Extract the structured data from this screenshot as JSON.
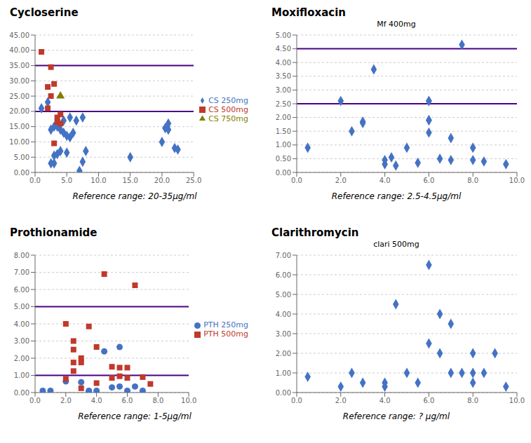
{
  "chart_data": [
    {
      "type": "scatter",
      "title": "Cycloserine",
      "annotation": "Reference range: 20-35μg/ml",
      "ref_lines": [
        {
          "value": 20.0,
          "color": "#4b0082"
        },
        {
          "value": 35.0,
          "color": "#4b0082"
        }
      ],
      "xlim": [
        0,
        25
      ],
      "ylim": [
        0,
        45
      ],
      "xticks": [
        {
          "value": 0,
          "label": "0.0"
        },
        {
          "value": 5.0,
          "label": "5.0"
        },
        {
          "value": 10.0,
          "label": "10.0"
        },
        {
          "value": 15.0,
          "label": "15.0"
        },
        {
          "value": 20.0,
          "label": "20.0"
        },
        {
          "value": 25.0,
          "label": "25.0"
        }
      ],
      "yticks": [
        {
          "value": 0,
          "label": "0.00"
        },
        {
          "value": 5.0,
          "label": "5.00"
        },
        {
          "value": 10.0,
          "label": "10.00"
        },
        {
          "value": 15.0,
          "label": "15.00"
        },
        {
          "value": 20.0,
          "label": "20.00"
        },
        {
          "value": 25.0,
          "label": "25.00"
        },
        {
          "value": 30.0,
          "label": "30.00"
        },
        {
          "value": 35.0,
          "label": "35.00"
        },
        {
          "value": 40.0,
          "label": "40.00"
        },
        {
          "value": 45.0,
          "label": "45.00"
        }
      ],
      "grid": "y",
      "legend": "right",
      "series": [
        {
          "name": "CS 250mg",
          "color": "#4472c4",
          "marker": "diamond",
          "x": [
            1.0,
            2.0,
            2.5,
            2.5,
            3.0,
            3.0,
            3.0,
            3.5,
            3.5,
            4.0,
            4.0,
            4.5,
            4.5,
            5.0,
            5.0,
            5.5,
            5.5,
            6.0,
            6.5,
            7.0,
            7.5,
            7.5,
            8.0,
            15.0,
            20.0,
            20.5,
            21.0,
            21.0,
            22.0,
            22.5
          ],
          "y": [
            21.0,
            23.0,
            3.0,
            14.0,
            3.0,
            5.5,
            15.0,
            6.0,
            15.0,
            14.0,
            7.0,
            13.0,
            17.0,
            6.5,
            12.0,
            11.5,
            18.0,
            13.0,
            17.0,
            0.5,
            3.5,
            18.0,
            7.0,
            5.0,
            10.0,
            14.5,
            14.0,
            16.0,
            8.0,
            7.5
          ]
        },
        {
          "name": "CS 500mg",
          "color": "#c0392b",
          "marker": "square",
          "x": [
            1.0,
            2.0,
            2.0,
            2.5,
            2.5,
            3.0,
            3.0,
            3.5,
            3.5,
            4.0,
            4.0
          ],
          "y": [
            39.5,
            21.0,
            28.0,
            34.5,
            25.0,
            9.5,
            29.0,
            16.5,
            18.0,
            16.0,
            19.0
          ]
        },
        {
          "name": "CS 750mg",
          "color": "#7f7f00",
          "marker": "triangle",
          "x": [
            4.0
          ],
          "y": [
            25.0
          ]
        }
      ]
    },
    {
      "type": "scatter",
      "title": "Moxifloxacin",
      "subtitle": "Mf 400mg",
      "annotation": "Reference range: 2.5-4.5μg/ml",
      "ref_lines": [
        {
          "value": 2.5,
          "color": "#4b0082"
        },
        {
          "value": 4.5,
          "color": "#4b0082"
        }
      ],
      "xlim": [
        0,
        10
      ],
      "ylim": [
        0,
        5.0
      ],
      "xticks": [
        {
          "value": 0,
          "label": "0.0"
        },
        {
          "value": 2.0,
          "label": "2.0"
        },
        {
          "value": 4.0,
          "label": "4.0"
        },
        {
          "value": 6.0,
          "label": "6.0"
        },
        {
          "value": 8.0,
          "label": "8.0"
        },
        {
          "value": 10.0,
          "label": "10.0"
        }
      ],
      "yticks": [
        {
          "value": 0,
          "label": "0.00"
        },
        {
          "value": 0.5,
          "label": "0.50"
        },
        {
          "value": 1.0,
          "label": "1.00"
        },
        {
          "value": 1.5,
          "label": "1.50"
        },
        {
          "value": 2.0,
          "label": "2.00"
        },
        {
          "value": 2.5,
          "label": "2.50"
        },
        {
          "value": 3.0,
          "label": "3.00"
        },
        {
          "value": 3.5,
          "label": "3.50"
        },
        {
          "value": 4.0,
          "label": "4.00"
        },
        {
          "value": 4.5,
          "label": "4.50"
        },
        {
          "value": 5.0,
          "label": "5.00"
        }
      ],
      "grid": "y",
      "series": [
        {
          "color": "#4472c4",
          "marker": "diamond",
          "x": [
            0.5,
            2.0,
            2.5,
            3.0,
            3.0,
            3.5,
            4.0,
            4.0,
            4.3,
            4.5,
            5.0,
            5.5,
            6.0,
            6.0,
            6.0,
            6.0,
            6.0,
            6.5,
            7.0,
            7.0,
            7.5,
            8.0,
            8.0,
            8.5,
            9.5
          ],
          "y": [
            0.9,
            2.6,
            1.5,
            1.8,
            1.85,
            3.75,
            0.3,
            0.45,
            0.55,
            0.25,
            0.9,
            0.35,
            2.6,
            1.9,
            1.9,
            2.6,
            1.45,
            0.5,
            1.25,
            0.45,
            4.65,
            0.45,
            0.9,
            0.4,
            0.3
          ]
        }
      ]
    },
    {
      "type": "scatter",
      "title": "Prothionamide",
      "annotation": "Reference range: 1-5μg/ml",
      "ref_lines": [
        {
          "value": 1.0,
          "color": "#4b0082"
        },
        {
          "value": 5.0,
          "color": "#4b0082"
        }
      ],
      "xlim": [
        0,
        10
      ],
      "ylim": [
        0,
        8.0
      ],
      "xticks": [
        {
          "value": 0,
          "label": "0.0"
        },
        {
          "value": 2.0,
          "label": "2.0"
        },
        {
          "value": 4.0,
          "label": "4.0"
        },
        {
          "value": 6.0,
          "label": "6.0"
        },
        {
          "value": 8.0,
          "label": "8.0"
        },
        {
          "value": 10.0,
          "label": "10.0"
        }
      ],
      "yticks": [
        {
          "value": 0,
          "label": "0.00"
        },
        {
          "value": 1.0,
          "label": "1.00"
        },
        {
          "value": 2.0,
          "label": "2.00"
        },
        {
          "value": 3.0,
          "label": "3.00"
        },
        {
          "value": 4.0,
          "label": "4.00"
        },
        {
          "value": 5.0,
          "label": "5.00"
        },
        {
          "value": 6.0,
          "label": "6.00"
        },
        {
          "value": 7.0,
          "label": "7.00"
        },
        {
          "value": 8.0,
          "label": "8.00"
        }
      ],
      "grid": "y",
      "legend": "right",
      "series": [
        {
          "name": "PTH 250mg",
          "color": "#4472c4",
          "marker": "circle",
          "x": [
            0.5,
            1.0,
            2.0,
            3.0,
            3.5,
            3.5,
            4.0,
            4.5,
            5.0,
            5.5,
            5.5,
            6.0,
            6.5,
            7.0
          ],
          "y": [
            0.1,
            0.1,
            0.65,
            0.6,
            0.05,
            0.1,
            0.1,
            2.4,
            0.3,
            0.35,
            2.65,
            0.1,
            0.35,
            0.1
          ]
        },
        {
          "name": "PTH 500mg",
          "color": "#c0392b",
          "marker": "square",
          "x": [
            2.0,
            2.0,
            2.5,
            2.5,
            2.5,
            2.5,
            3.0,
            3.0,
            3.0,
            3.5,
            4.0,
            4.0,
            4.5,
            5.0,
            5.0,
            5.5,
            5.5,
            6.0,
            6.0,
            6.5,
            7.0,
            7.5
          ],
          "y": [
            0.8,
            4.0,
            3.0,
            1.75,
            2.5,
            1.25,
            1.75,
            2.0,
            0.25,
            3.85,
            0.55,
            2.65,
            6.9,
            0.85,
            1.5,
            0.95,
            1.45,
            1.45,
            0.85,
            6.25,
            0.9,
            0.5
          ]
        }
      ]
    },
    {
      "type": "scatter",
      "title": "Clarithromycin",
      "subtitle": "clari 500mg",
      "annotation": "Reference range: ? μg/ml",
      "ref_lines": [],
      "xlim": [
        0,
        10
      ],
      "ylim": [
        0,
        7.0
      ],
      "xticks": [
        {
          "value": 0,
          "label": "0.0"
        },
        {
          "value": 2.0,
          "label": "2.0"
        },
        {
          "value": 4.0,
          "label": "4.0"
        },
        {
          "value": 6.0,
          "label": "6.0"
        },
        {
          "value": 8.0,
          "label": "8.0"
        },
        {
          "value": 10.0,
          "label": "10.0"
        }
      ],
      "yticks": [
        {
          "value": 0,
          "label": "0.00"
        },
        {
          "value": 1.0,
          "label": "1.00"
        },
        {
          "value": 2.0,
          "label": "2.00"
        },
        {
          "value": 3.0,
          "label": "3.00"
        },
        {
          "value": 4.0,
          "label": "4.00"
        },
        {
          "value": 5.0,
          "label": "5.00"
        },
        {
          "value": 6.0,
          "label": "6.00"
        },
        {
          "value": 7.0,
          "label": "7.00"
        }
      ],
      "grid": "y",
      "series": [
        {
          "color": "#4472c4",
          "marker": "diamond",
          "x": [
            0.5,
            2.0,
            2.5,
            3.0,
            4.0,
            4.0,
            4.5,
            5.0,
            5.5,
            6.0,
            6.0,
            6.5,
            6.5,
            7.0,
            7.0,
            7.5,
            8.0,
            8.0,
            8.0,
            8.5,
            9.0,
            9.5
          ],
          "y": [
            0.8,
            0.3,
            1.0,
            0.5,
            0.3,
            0.5,
            4.5,
            1.0,
            0.5,
            6.5,
            2.5,
            2.0,
            4.0,
            1.0,
            3.5,
            1.0,
            1.0,
            2.0,
            0.5,
            1.0,
            2.0,
            0.3
          ]
        }
      ]
    }
  ]
}
